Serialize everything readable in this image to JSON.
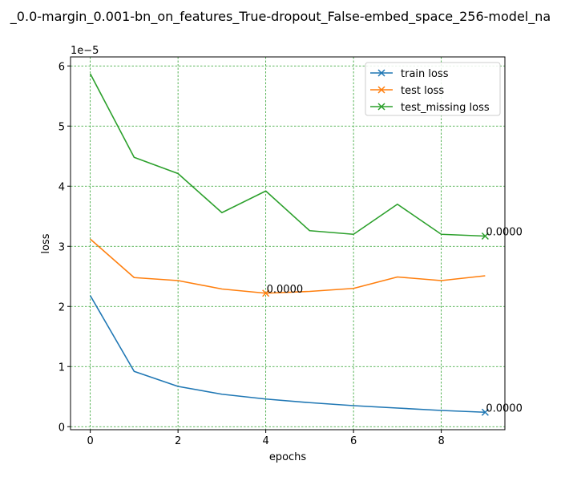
{
  "chart_data": {
    "type": "line",
    "title": "_0.0-margin_0.001-bn_on_features_True-dropout_False-embed_space_256-model_na",
    "xlabel": "epochs",
    "ylabel": "loss",
    "y_offset_text": "1e−5",
    "x": [
      0,
      1,
      2,
      3,
      4,
      5,
      6,
      7,
      8,
      9
    ],
    "xlim": [
      -0.45,
      9.45
    ],
    "ylim": [
      -0.05,
      6.15
    ],
    "xticks": [
      0,
      2,
      4,
      6,
      8
    ],
    "yticks": [
      0,
      1,
      2,
      3,
      4,
      5,
      6
    ],
    "grid": true,
    "grid_color": "#2ca02c",
    "legend_position": "top-right",
    "series": [
      {
        "name": "train loss",
        "color": "#1f77b4",
        "values": [
          2.18,
          0.92,
          0.67,
          0.54,
          0.46,
          0.4,
          0.35,
          0.31,
          0.27,
          0.24
        ],
        "marker_index": 9,
        "annotation": "0.0000"
      },
      {
        "name": "test loss",
        "color": "#ff7f0e",
        "values": [
          3.12,
          2.48,
          2.43,
          2.29,
          2.22,
          2.25,
          2.3,
          2.49,
          2.43,
          2.51
        ],
        "marker_index": 4,
        "annotation": "0.0000"
      },
      {
        "name": "test_missing loss",
        "color": "#2ca02c",
        "values": [
          5.87,
          4.48,
          4.21,
          3.56,
          3.92,
          3.26,
          3.2,
          3.7,
          3.2,
          3.17
        ],
        "marker_index": 9,
        "annotation": "0.0000"
      }
    ]
  }
}
